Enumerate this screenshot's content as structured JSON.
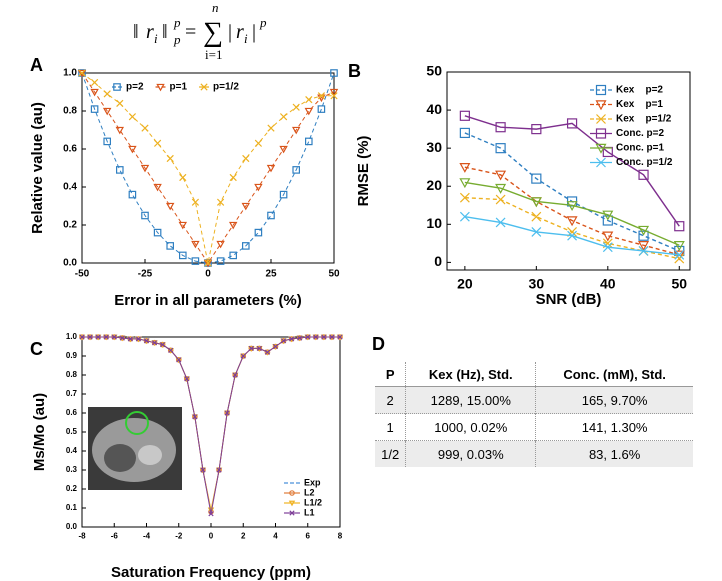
{
  "equation": {
    "lhs_open": "‖",
    "lhs_var": "r",
    "lhs_sub": "i",
    "lhs_close": "‖",
    "lhs_sup": "p",
    "lhs_sub2": "p",
    "equals": "=",
    "sum": "∑",
    "sum_upper": "n",
    "sum_lower": "i=1",
    "rhs_open": "|",
    "rhs_var": "r",
    "rhs_sub": "i",
    "rhs_close": "|",
    "rhs_sup": "p"
  },
  "chart_data": [
    {
      "type": "line",
      "panel": "A",
      "xlabel": "Error in all parameters (%)",
      "ylabel": "Relative value  (au)",
      "x": [
        -50,
        -45,
        -40,
        -35,
        -30,
        -25,
        -20,
        -15,
        -10,
        -5,
        0,
        5,
        10,
        15,
        20,
        25,
        30,
        35,
        40,
        45,
        50
      ],
      "series": [
        {
          "name": "p=2",
          "color": "#2f7fc1",
          "marker": "square",
          "linestyle": "dashed",
          "values": [
            1,
            0.81,
            0.64,
            0.49,
            0.36,
            0.25,
            0.16,
            0.09,
            0.04,
            0.01,
            0,
            0.01,
            0.04,
            0.09,
            0.16,
            0.25,
            0.36,
            0.49,
            0.64,
            0.81,
            1
          ]
        },
        {
          "name": "p=1",
          "color": "#d9541a",
          "marker": "triangle-down",
          "linestyle": "dashed",
          "values": [
            1,
            0.9,
            0.8,
            0.7,
            0.6,
            0.5,
            0.4,
            0.3,
            0.2,
            0.1,
            0,
            0.1,
            0.2,
            0.3,
            0.4,
            0.5,
            0.6,
            0.7,
            0.8,
            0.87,
            0.9
          ]
        },
        {
          "name": "p=1/2",
          "color": "#edb120",
          "marker": "x",
          "linestyle": "dashed",
          "values": [
            1,
            0.95,
            0.89,
            0.84,
            0.77,
            0.71,
            0.63,
            0.55,
            0.45,
            0.32,
            0,
            0.32,
            0.45,
            0.55,
            0.63,
            0.71,
            0.77,
            0.82,
            0.86,
            0.88,
            0.88
          ]
        }
      ],
      "xlim": [
        -50,
        50
      ],
      "ylim": [
        0,
        1
      ],
      "xticks": [
        -50,
        -25,
        0,
        25,
        50
      ],
      "yticks": [
        {
          "value": 0,
          "label": "0.0"
        },
        0.2,
        0.4,
        0.6,
        0.8,
        {
          "value": 1,
          "label": "1.0"
        }
      ],
      "legend": "top"
    },
    {
      "type": "line",
      "panel": "B",
      "xlabel": "SNR (dB)",
      "ylabel": "RMSE (%)",
      "x": [
        20,
        25,
        30,
        35,
        40,
        45,
        50
      ],
      "series": [
        {
          "name": "Kex    p=2",
          "color": "#2f7fc1",
          "marker": "square",
          "linestyle": "dashed",
          "values": [
            34,
            30,
            22,
            16,
            11,
            7,
            3
          ]
        },
        {
          "name": "Kex    p=1",
          "color": "#d9541a",
          "marker": "triangle-down",
          "linestyle": "dashed",
          "values": [
            25,
            23,
            16,
            11,
            7,
            4.5,
            2
          ]
        },
        {
          "name": "Kex    p=1/2",
          "color": "#edb120",
          "marker": "x",
          "linestyle": "dashed",
          "values": [
            17,
            16.5,
            12,
            8,
            5,
            3,
            1
          ]
        },
        {
          "name": "Conc. p=2",
          "color": "#7e2f8e",
          "marker": "square",
          "linestyle": "solid",
          "values": [
            38.5,
            35.5,
            35,
            36.5,
            29,
            23,
            9.5
          ]
        },
        {
          "name": "Conc. p=1",
          "color": "#77ac30",
          "marker": "triangle-down",
          "linestyle": "solid",
          "values": [
            21,
            19.5,
            16,
            15,
            12.5,
            8.5,
            4.5
          ]
        },
        {
          "name": "Conc. p=1/2",
          "color": "#4dbeee",
          "marker": "x",
          "linestyle": "solid",
          "values": [
            12,
            10.5,
            8,
            7,
            4,
            3,
            2
          ]
        }
      ],
      "xlim": [
        17.5,
        51.5
      ],
      "ylim": [
        -2,
        50
      ],
      "xticks": [
        20,
        30,
        40,
        50
      ],
      "yticks": [
        0,
        10,
        20,
        30,
        40,
        50
      ],
      "legend": "upper right"
    },
    {
      "type": "line",
      "panel": "C",
      "xlabel": "Saturation Frequency (ppm)",
      "ylabel": "Ms/Mo (au)",
      "x": [
        -8,
        -7.5,
        -7,
        -6.5,
        -6,
        -5.5,
        -5,
        -4.5,
        -4,
        -3.5,
        -3,
        -2.5,
        -2,
        -1.5,
        -1,
        -0.5,
        0,
        0.5,
        1,
        1.5,
        2,
        2.5,
        3,
        3.5,
        4,
        4.5,
        5,
        5.5,
        6,
        6.5,
        7,
        7.5,
        8
      ],
      "series": [
        {
          "name": "Exp",
          "color": "#4a90d9",
          "marker": "none",
          "linestyle": "dashed",
          "values": [
            1,
            1,
            1,
            1,
            1,
            0.995,
            0.99,
            0.99,
            0.98,
            0.97,
            0.96,
            0.93,
            0.88,
            0.78,
            0.58,
            0.3,
            0.08,
            0.3,
            0.6,
            0.8,
            0.9,
            0.94,
            0.94,
            0.92,
            0.95,
            0.98,
            0.99,
            0.995,
            1,
            1,
            1,
            1,
            1
          ]
        },
        {
          "name": "L2",
          "color": "#e07b39",
          "marker": "circle",
          "linestyle": "solid",
          "values": [
            1,
            1,
            1,
            1,
            1,
            0.995,
            0.99,
            0.99,
            0.98,
            0.97,
            0.96,
            0.93,
            0.88,
            0.78,
            0.58,
            0.3,
            0.08,
            0.3,
            0.6,
            0.8,
            0.9,
            0.94,
            0.94,
            0.92,
            0.95,
            0.98,
            0.99,
            0.995,
            1,
            1,
            1,
            1,
            1
          ]
        },
        {
          "name": "L1/2",
          "color": "#f0b323",
          "marker": "triangle-down",
          "linestyle": "solid",
          "values": [
            1,
            1,
            1,
            1,
            1,
            0.995,
            0.99,
            0.99,
            0.98,
            0.97,
            0.96,
            0.93,
            0.88,
            0.78,
            0.58,
            0.3,
            0.09,
            0.3,
            0.6,
            0.8,
            0.9,
            0.94,
            0.94,
            0.92,
            0.95,
            0.98,
            0.99,
            0.995,
            1,
            1,
            1,
            1,
            1
          ]
        },
        {
          "name": "L1",
          "color": "#7e3f98",
          "marker": "x",
          "linestyle": "solid",
          "values": [
            1,
            1,
            1,
            1,
            1,
            0.995,
            0.99,
            0.99,
            0.98,
            0.97,
            0.96,
            0.93,
            0.88,
            0.78,
            0.58,
            0.3,
            0.07,
            0.3,
            0.6,
            0.8,
            0.9,
            0.94,
            0.94,
            0.92,
            0.95,
            0.98,
            0.99,
            0.995,
            1,
            1,
            1,
            1,
            1
          ]
        }
      ],
      "xlim": [
        -8,
        8
      ],
      "ylim": [
        0,
        1
      ],
      "xticks": [
        -8,
        -6,
        -4,
        -2,
        0,
        2,
        4,
        6,
        8
      ],
      "yticks": [
        {
          "value": 0,
          "label": "0.0"
        },
        0.1,
        0.2,
        0.3,
        0.4,
        0.5,
        0.6,
        0.7,
        0.8,
        0.9,
        {
          "value": 1,
          "label": "1.0"
        }
      ],
      "legend": "lower right"
    }
  ],
  "table": {
    "panel": "D",
    "header": [
      "P",
      "Kex (Hz), Std.",
      "Conc. (mM), Std."
    ],
    "rows": [
      [
        "2",
        "1289, 15.00%",
        "165, 9.70%"
      ],
      [
        "1",
        "1000, 0.02%",
        "141, 1.30%"
      ],
      [
        "1/2",
        "999, 0.03%",
        "83, 1.6%"
      ]
    ]
  }
}
